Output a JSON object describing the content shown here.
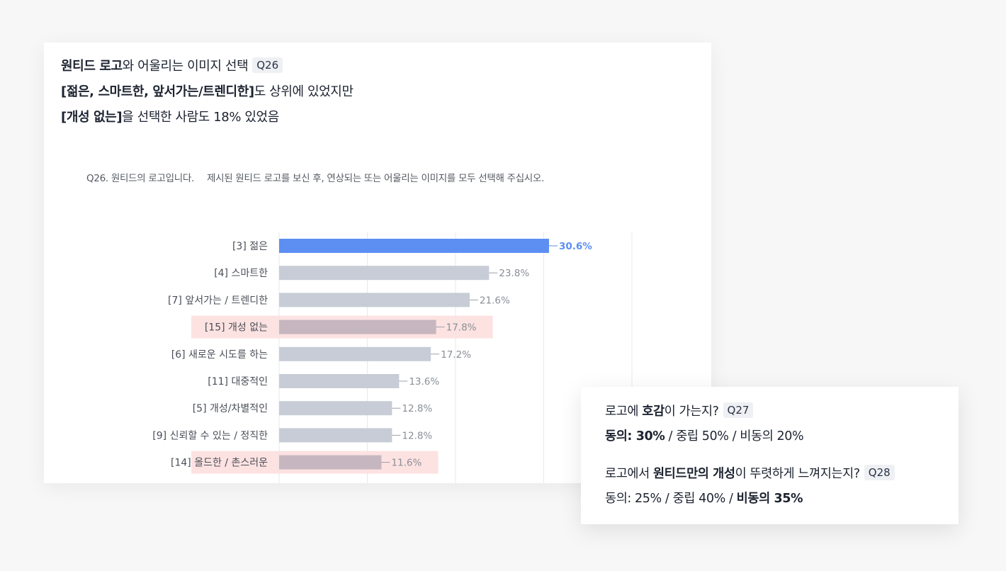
{
  "heading": {
    "line1": {
      "bold": "원티드 로고",
      "rest": "와 어울리는 이미지 선택",
      "tag": "Q26"
    },
    "line2": {
      "bold": "[젊은, 스마트한, 앞서가는/트렌디한]",
      "rest": "도 상위에 있었지만"
    },
    "line3": {
      "bold": "[개성 없는]",
      "rest": "을 선택한 사람도 18% 있었음"
    }
  },
  "question": {
    "label": "Q26. 원티드의 로고입니다.",
    "text": "제시된 원티드 로고를 보신 후, 연상되는 또는 어울리는 이미지를 모두 선택해 주십시오."
  },
  "chart_data": {
    "type": "bar",
    "orientation": "horizontal",
    "unit": "%",
    "categories": [
      "[3] 젊은",
      "[4] 스마트한",
      "[7] 앞서가는 / 트렌디한",
      "[15] 개성 없는",
      "[6] 새로운 시도를 하는",
      "[11] 대중적인",
      "[5] 개성/차별적인",
      "[9] 신뢰할 수 있는 / 정직한",
      "[14] 올드한 / 촌스러운"
    ],
    "values": [
      30.6,
      23.8,
      21.6,
      17.8,
      17.2,
      13.6,
      12.8,
      12.8,
      11.6
    ],
    "labels": [
      "30.6%",
      "23.8%",
      "21.6%",
      "17.8%",
      "17.2%",
      "13.6%",
      "12.8%",
      "12.8%",
      "11.6%"
    ],
    "highlighted": [
      3,
      8
    ],
    "top_index": 0,
    "xlim": [
      0,
      40
    ],
    "grid_step": 10,
    "grid": true,
    "colors": {
      "top": "#5d8ff3",
      "bar": "#c7ccd6",
      "highlight_bar": "#c6b6bf",
      "highlight_bg": "#fde2e2",
      "label": "#8a8f96",
      "top_label": "#5d8ff3",
      "grid": "#e6e8ec"
    }
  },
  "side": {
    "q27": {
      "pre": "로고에 ",
      "bold": "호감",
      "post": "이 가는지?",
      "tag": "Q27"
    },
    "q27_result": {
      "b1": "동의: 30%",
      "r1": " / 중립 50% / 비동의 20%"
    },
    "q28": {
      "pre": "로고에서 ",
      "bold": "원티드만의 개성",
      "post": "이 뚜렷하게 느껴지는지?",
      "tag": "Q28"
    },
    "q28_result": {
      "r1": "동의: 25% / 중립 40% / ",
      "b1": "비동의 35%"
    }
  }
}
